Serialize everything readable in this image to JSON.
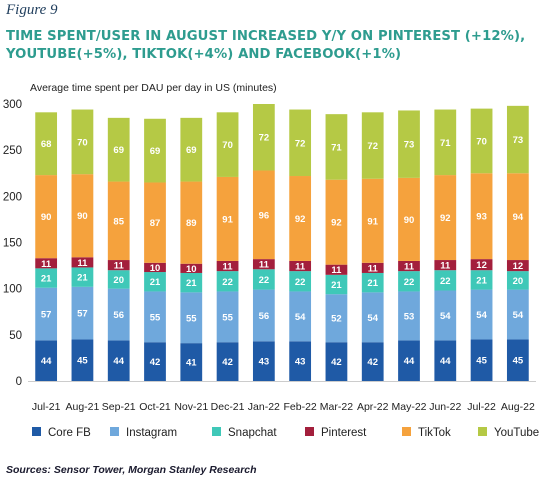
{
  "figure_label": "Figure 9",
  "title_lines": [
    "TIME SPENT/USER IN AUGUST INCREASED Y/Y ON PINTEREST (+12%),",
    "YOUTUBE(+5%), TIKTOK(+4%) AND FACEBOOK(+1%)"
  ],
  "unit_label": "Average time spent per DAU per day in US (minutes)",
  "source": "Sources: Sensor Tower, Morgan Stanley Research",
  "chart_data": {
    "type": "bar",
    "stacked": true,
    "categories": [
      "Jul-21",
      "Aug-21",
      "Sep-21",
      "Oct-21",
      "Nov-21",
      "Dec-21",
      "Jan-22",
      "Feb-22",
      "Mar-22",
      "Apr-22",
      "May-22",
      "Jun-22",
      "Jul-22",
      "Aug-22"
    ],
    "ylim": [
      0,
      300
    ],
    "yticks": [
      0,
      50,
      100,
      150,
      200,
      250,
      300
    ],
    "grid": false,
    "legend_position": "bottom",
    "series": [
      {
        "name": "Core FB",
        "color": "#1f5aa6",
        "label_color": "#ffffff",
        "values": [
          44,
          45,
          44,
          42,
          41,
          42,
          43,
          43,
          42,
          42,
          44,
          44,
          45,
          45
        ]
      },
      {
        "name": "Instagram",
        "color": "#6fa8dc",
        "label_color": "#ffffff",
        "values": [
          57,
          57,
          56,
          55,
          55,
          55,
          56,
          54,
          52,
          54,
          53,
          54,
          54,
          54
        ]
      },
      {
        "name": "Snapchat",
        "color": "#3fc8b8",
        "label_color": "#ffffff",
        "values": [
          21,
          21,
          20,
          21,
          21,
          22,
          22,
          22,
          21,
          21,
          22,
          22,
          21,
          20
        ]
      },
      {
        "name": "Pinterest",
        "color": "#a31f3c",
        "label_color": "#ffffff",
        "values": [
          11,
          11,
          11,
          10,
          10,
          11,
          11,
          11,
          11,
          11,
          11,
          11,
          12,
          12
        ]
      },
      {
        "name": "TikTok",
        "color": "#f5a23d",
        "label_color": "#ffffff",
        "values": [
          90,
          90,
          85,
          87,
          89,
          91,
          96,
          92,
          92,
          91,
          90,
          92,
          93,
          94
        ]
      },
      {
        "name": "YouTube",
        "color": "#b5c945",
        "label_color": "#ffffff",
        "values": [
          68,
          70,
          69,
          69,
          69,
          70,
          72,
          72,
          71,
          72,
          73,
          71,
          70,
          73
        ]
      }
    ]
  }
}
